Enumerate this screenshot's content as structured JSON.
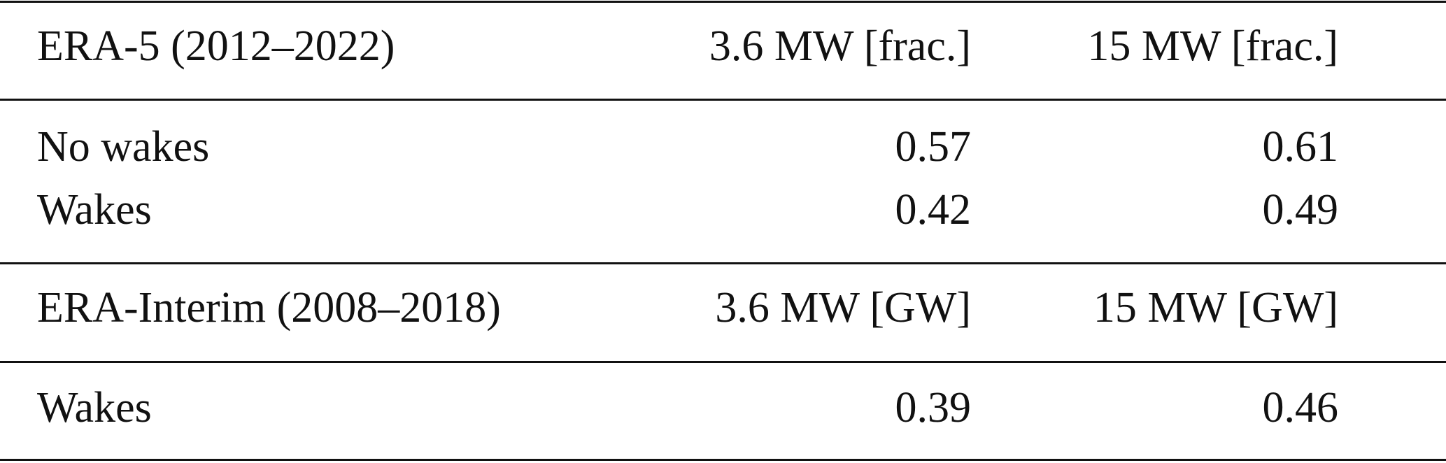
{
  "table": {
    "sections": [
      {
        "header": [
          "ERA-5 (2012–2022)",
          "3.6 MW [frac.]",
          "15 MW [frac.]"
        ],
        "rows": [
          [
            "No wakes",
            0.57,
            0.61
          ],
          [
            "Wakes",
            0.42,
            0.49
          ]
        ]
      },
      {
        "header": [
          "ERA-Interim (2008–2018)",
          "3.6 MW [GW]",
          "15 MW [GW]"
        ],
        "rows": [
          [
            "Wakes",
            0.39,
            0.46
          ]
        ]
      }
    ]
  }
}
